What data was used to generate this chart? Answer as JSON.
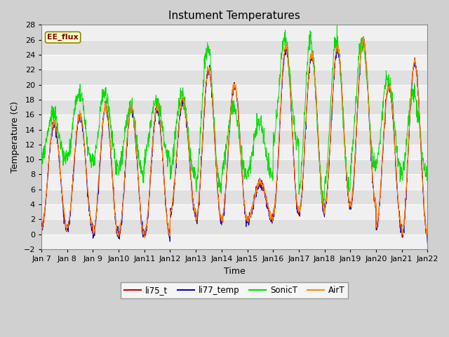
{
  "title": "Instument Temperatures",
  "xlabel": "Time",
  "ylabel": "Temperature (C)",
  "ylim": [
    -2,
    28
  ],
  "x_tick_labels": [
    "Jan 7",
    "Jan 8",
    "Jan 9",
    "Jan 10",
    "Jan 11",
    "Jan 12",
    "Jan 13",
    "Jan 14",
    "Jan 15",
    "Jan 16",
    "Jan 17",
    "Jan 18",
    "Jan 19",
    "Jan 20",
    "Jan 21",
    "Jan 22"
  ],
  "x_tick_positions": [
    7,
    8,
    9,
    10,
    11,
    12,
    13,
    14,
    15,
    16,
    17,
    18,
    19,
    20,
    21,
    22
  ],
  "colors": {
    "li75_t": "#cc0000",
    "li77_temp": "#0000cc",
    "SonicT": "#00dd00",
    "AirT": "#ff8800"
  },
  "annotation_text": "EE_flux",
  "annotation_color": "#800000",
  "annotation_bg": "#ffffcc",
  "title_fontsize": 11,
  "axis_fontsize": 9,
  "tick_fontsize": 8
}
